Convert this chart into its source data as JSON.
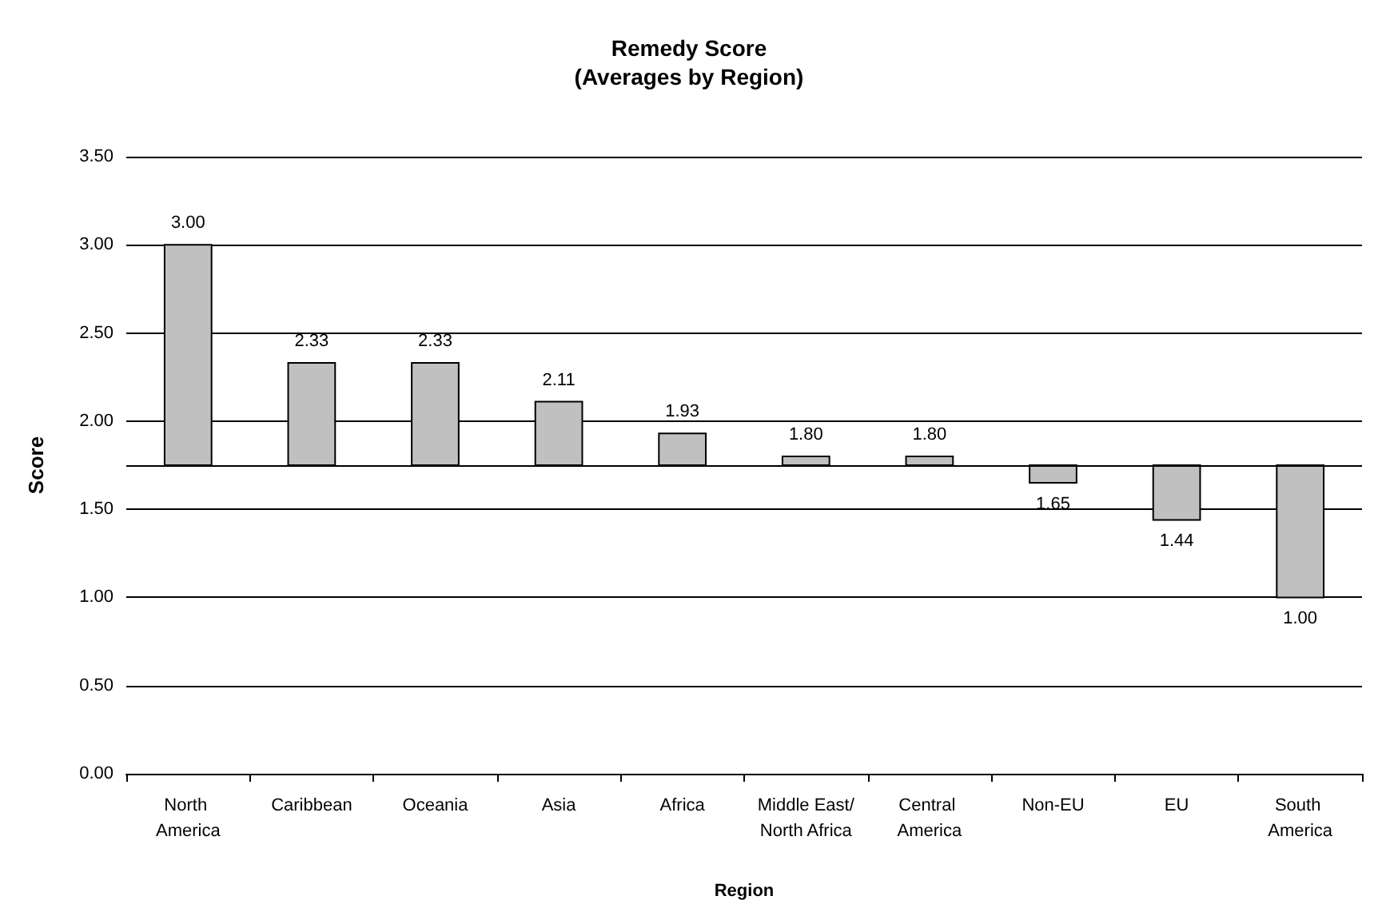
{
  "chart_data": {
    "type": "bar",
    "title": "Remedy Score\n(Averages by Region)",
    "xlabel": "Region",
    "ylabel": "Score",
    "categories": [
      "North America",
      "Caribbean",
      "Oceania",
      "Asia",
      "Africa",
      "Middle East/North Africa",
      "Central America",
      "Non-EU",
      "EU",
      "South America"
    ],
    "base": [
      1.75,
      1.75,
      1.75,
      1.75,
      1.75,
      1.75,
      1.75,
      1.75,
      1.75,
      1.75
    ],
    "values": [
      1.25,
      0.58,
      0.58,
      0.36,
      0.18,
      0.05,
      0.05,
      -0.1,
      -0.31,
      -0.75
    ],
    "value_labels": [
      "3.00",
      "2.33",
      "2.33",
      "2.11",
      "1.93",
      "1.80",
      "1.80",
      "1.65",
      "1.44",
      "1.00"
    ],
    "color": "#c0c0c0",
    "ylim": [
      0,
      3.5
    ],
    "yticks": [
      {
        "value": 0,
        "label": "0.00"
      },
      {
        "value": 0.5,
        "label": "0.50"
      },
      {
        "value": 1,
        "label": "1.00"
      },
      {
        "value": 1.5,
        "label": "1.50"
      },
      {
        "value": 2,
        "label": "2.00"
      },
      {
        "value": 2.5,
        "label": "2.50"
      },
      {
        "value": 3,
        "label": "3.00"
      },
      {
        "value": 3.5,
        "label": "3.50"
      }
    ],
    "ref_lines": [
      {
        "axis": "y",
        "value": 1.75,
        "label": null
      }
    ],
    "grid": "y"
  }
}
